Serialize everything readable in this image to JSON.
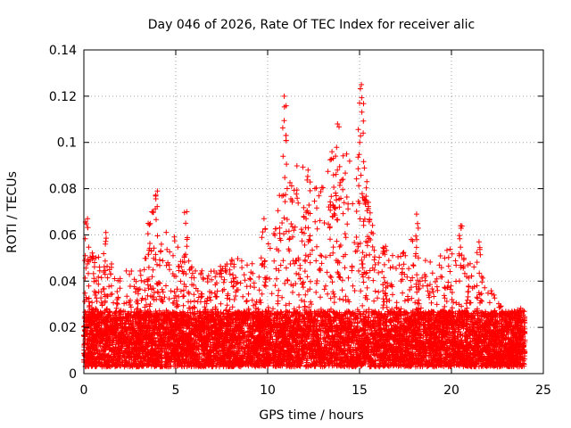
{
  "chart_data": {
    "type": "scatter",
    "title": "Day 046 of 2026, Rate Of TEC Index for receiver alic",
    "xlabel": "GPS time / hours",
    "ylabel": "ROTI / TECUs",
    "xlim": [
      0,
      25
    ],
    "ylim": [
      0,
      0.14
    ],
    "x_ticks": [
      0,
      5,
      10,
      15,
      20,
      25
    ],
    "x_tick_labels": [
      "0",
      "5",
      "10",
      "15",
      "20",
      "25"
    ],
    "y_ticks": [
      0,
      0.02,
      0.04,
      0.06,
      0.08,
      0.1,
      0.12,
      0.14
    ],
    "y_tick_labels": [
      "0",
      "0.02",
      "0.04",
      "0.06",
      "0.08",
      "0.1",
      "0.12",
      "0.14"
    ],
    "grid": true,
    "marker": "plus",
    "series": [
      {
        "name": "ROTI",
        "color": "#ff0000",
        "x_range": [
          0,
          24
        ],
        "baseline_min": 0.003,
        "baseline_typical": 0.015,
        "envelope_hours": [
          0,
          1,
          2,
          3,
          4,
          5,
          6,
          7,
          8,
          9,
          10,
          11,
          12,
          13,
          14,
          15,
          16,
          17,
          18,
          19,
          20,
          21,
          22,
          23,
          24
        ],
        "envelope_roti": [
          0.055,
          0.05,
          0.045,
          0.045,
          0.065,
          0.06,
          0.045,
          0.045,
          0.05,
          0.05,
          0.055,
          0.09,
          0.09,
          0.09,
          0.1,
          0.085,
          0.06,
          0.05,
          0.06,
          0.05,
          0.055,
          0.05,
          0.04,
          0.025,
          0.03
        ],
        "spikes": [
          {
            "x": 0.2,
            "y": 0.067
          },
          {
            "x": 1.2,
            "y": 0.061
          },
          {
            "x": 3.5,
            "y": 0.065
          },
          {
            "x": 3.7,
            "y": 0.07
          },
          {
            "x": 4.0,
            "y": 0.079
          },
          {
            "x": 5.6,
            "y": 0.07
          },
          {
            "x": 9.8,
            "y": 0.067
          },
          {
            "x": 10.9,
            "y": 0.12
          },
          {
            "x": 11.0,
            "y": 0.103
          },
          {
            "x": 12.2,
            "y": 0.088
          },
          {
            "x": 13.5,
            "y": 0.096
          },
          {
            "x": 13.8,
            "y": 0.108
          },
          {
            "x": 15.0,
            "y": 0.117
          },
          {
            "x": 15.1,
            "y": 0.125
          },
          {
            "x": 15.2,
            "y": 0.104
          },
          {
            "x": 15.4,
            "y": 0.083
          },
          {
            "x": 18.1,
            "y": 0.069
          },
          {
            "x": 20.5,
            "y": 0.064
          },
          {
            "x": 21.5,
            "y": 0.057
          }
        ]
      }
    ]
  }
}
